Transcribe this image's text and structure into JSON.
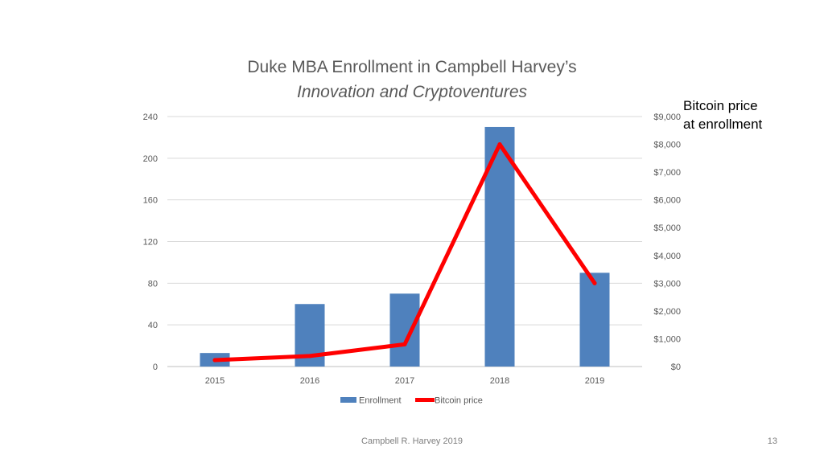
{
  "slide": {
    "title_line1": "Duke MBA Enrollment in Campbell Harvey’s",
    "title_line2": "Innovation and Cryptoventures",
    "right_axis_title_line1": "Bitcoin price",
    "right_axis_title_line2": "at enrollment",
    "footer": "Campbell R. Harvey 2019",
    "page_number": "13"
  },
  "chart_data": {
    "type": "bar",
    "categories": [
      "2015",
      "2016",
      "2017",
      "2018",
      "2019"
    ],
    "series": [
      {
        "name": "Enrollment",
        "type": "bar",
        "axis": "left",
        "color": "#4f81bd",
        "values": [
          13,
          60,
          70,
          230,
          90
        ]
      },
      {
        "name": "Bitcoin price",
        "type": "line",
        "axis": "right",
        "color": "#ff0000",
        "values": [
          230,
          380,
          800,
          8000,
          3000
        ]
      }
    ],
    "y_left": {
      "range": [
        0,
        240
      ],
      "ticks": [
        "0",
        "40",
        "80",
        "120",
        "160",
        "200",
        "240"
      ],
      "tick_values": [
        0,
        40,
        80,
        120,
        160,
        200,
        240
      ]
    },
    "y_right": {
      "range": [
        0,
        9000
      ],
      "ticks": [
        "$0",
        "$1,000",
        "$2,000",
        "$3,000",
        "$4,000",
        "$5,000",
        "$6,000",
        "$7,000",
        "$8,000",
        "$9,000"
      ],
      "tick_values": [
        0,
        1000,
        2000,
        3000,
        4000,
        5000,
        6000,
        7000,
        8000,
        9000
      ]
    },
    "grid": true,
    "legend": "bottom",
    "legend_entries": [
      "Enrollment",
      "Bitcoin price"
    ]
  }
}
